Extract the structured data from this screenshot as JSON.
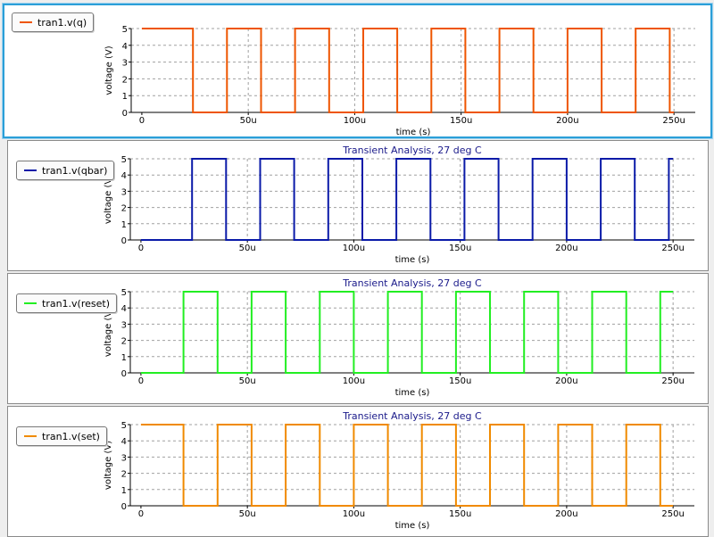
{
  "chart_data": [
    {
      "type": "line",
      "title": "",
      "xlabel": "time (s)",
      "ylabel": "voltage (V)",
      "xlim": [
        -5,
        260
      ],
      "ylim": [
        0,
        5
      ],
      "x_ticks": [
        {
          "v": 0,
          "label": "0"
        },
        {
          "v": 50,
          "label": "50u"
        },
        {
          "v": 100,
          "label": "100u"
        },
        {
          "v": 150,
          "label": "150u"
        },
        {
          "v": 200,
          "label": "200u"
        },
        {
          "v": 250,
          "label": "250u"
        }
      ],
      "y_ticks": [
        0,
        1,
        2,
        3,
        4,
        5
      ],
      "grid": true,
      "legend_position": "top-left",
      "series": [
        {
          "name": "tran1.v(q)",
          "color": "#ee5500",
          "x": [
            0,
            24,
            24,
            40,
            40,
            56,
            56,
            72,
            72,
            88,
            88,
            104,
            104,
            120,
            120,
            136,
            136,
            152,
            152,
            168,
            168,
            184,
            184,
            200,
            200,
            216,
            216,
            232,
            232,
            248,
            248,
            250
          ],
          "y": [
            5,
            5,
            0,
            0,
            5,
            5,
            0,
            0,
            5,
            5,
            0,
            0,
            5,
            5,
            0,
            0,
            5,
            5,
            0,
            0,
            5,
            5,
            0,
            0,
            5,
            5,
            0,
            0,
            5,
            5,
            0,
            0
          ]
        }
      ]
    },
    {
      "type": "line",
      "title": "Transient Analysis, 27 deg C",
      "xlabel": "time (s)",
      "ylabel": "voltage (V)",
      "xlim": [
        -5,
        260
      ],
      "ylim": [
        0,
        5
      ],
      "x_ticks": [
        {
          "v": 0,
          "label": "0"
        },
        {
          "v": 50,
          "label": "50u"
        },
        {
          "v": 100,
          "label": "100u"
        },
        {
          "v": 150,
          "label": "150u"
        },
        {
          "v": 200,
          "label": "200u"
        },
        {
          "v": 250,
          "label": "250u"
        }
      ],
      "y_ticks": [
        0,
        1,
        2,
        3,
        4,
        5
      ],
      "grid": true,
      "legend_position": "top-left",
      "series": [
        {
          "name": "tran1.v(qbar)",
          "color": "#0a1aa8",
          "x": [
            0,
            24,
            24,
            40,
            40,
            56,
            56,
            72,
            72,
            88,
            88,
            104,
            104,
            120,
            120,
            136,
            136,
            152,
            152,
            168,
            168,
            184,
            184,
            200,
            200,
            216,
            216,
            232,
            232,
            248,
            248,
            250
          ],
          "y": [
            0,
            0,
            5,
            5,
            0,
            0,
            5,
            5,
            0,
            0,
            5,
            5,
            0,
            0,
            5,
            5,
            0,
            0,
            5,
            5,
            0,
            0,
            5,
            5,
            0,
            0,
            5,
            5,
            0,
            0,
            5,
            5
          ]
        }
      ]
    },
    {
      "type": "line",
      "title": "Transient Analysis, 27 deg C",
      "xlabel": "time (s)",
      "ylabel": "voltage (V)",
      "xlim": [
        -5,
        260
      ],
      "ylim": [
        0,
        5
      ],
      "x_ticks": [
        {
          "v": 0,
          "label": "0"
        },
        {
          "v": 50,
          "label": "50u"
        },
        {
          "v": 100,
          "label": "100u"
        },
        {
          "v": 150,
          "label": "150u"
        },
        {
          "v": 200,
          "label": "200u"
        },
        {
          "v": 250,
          "label": "250u"
        }
      ],
      "y_ticks": [
        0,
        1,
        2,
        3,
        4,
        5
      ],
      "grid": true,
      "legend_position": "top-left",
      "series": [
        {
          "name": "tran1.v(reset)",
          "color": "#22ee22",
          "x": [
            0,
            20,
            20,
            36,
            36,
            52,
            52,
            68,
            68,
            84,
            84,
            100,
            100,
            116,
            116,
            132,
            132,
            148,
            148,
            164,
            164,
            180,
            180,
            196,
            196,
            212,
            212,
            228,
            228,
            244,
            244,
            250
          ],
          "y": [
            0,
            0,
            5,
            5,
            0,
            0,
            5,
            5,
            0,
            0,
            5,
            5,
            0,
            0,
            5,
            5,
            0,
            0,
            5,
            5,
            0,
            0,
            5,
            5,
            0,
            0,
            5,
            5,
            0,
            0,
            5,
            5
          ]
        }
      ]
    },
    {
      "type": "line",
      "title": "Transient Analysis, 27 deg C",
      "xlabel": "time (s)",
      "ylabel": "voltage (V)",
      "xlim": [
        -5,
        260
      ],
      "ylim": [
        0,
        5
      ],
      "x_ticks": [
        {
          "v": 0,
          "label": "0"
        },
        {
          "v": 50,
          "label": "50u"
        },
        {
          "v": 100,
          "label": "100u"
        },
        {
          "v": 150,
          "label": "150u"
        },
        {
          "v": 200,
          "label": "200u"
        },
        {
          "v": 250,
          "label": "250u"
        }
      ],
      "y_ticks": [
        0,
        1,
        2,
        3,
        4,
        5
      ],
      "grid": true,
      "legend_position": "top-left",
      "series": [
        {
          "name": "tran1.v(set)",
          "color": "#f08a00",
          "x": [
            0,
            20,
            20,
            36,
            36,
            52,
            52,
            68,
            68,
            84,
            84,
            100,
            100,
            116,
            116,
            132,
            132,
            148,
            148,
            164,
            164,
            180,
            180,
            196,
            196,
            212,
            212,
            228,
            228,
            244,
            244,
            250
          ],
          "y": [
            5,
            5,
            0,
            0,
            5,
            5,
            0,
            0,
            5,
            5,
            0,
            0,
            5,
            5,
            0,
            0,
            5,
            5,
            0,
            0,
            5,
            5,
            0,
            0,
            5,
            5,
            0,
            0,
            5,
            5,
            0,
            0
          ]
        }
      ]
    }
  ]
}
